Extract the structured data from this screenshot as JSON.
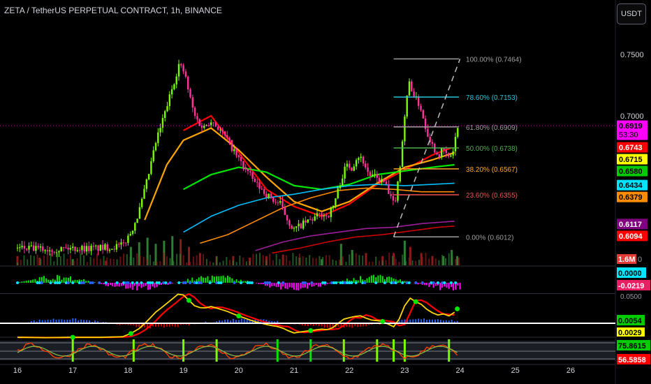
{
  "header": {
    "title": "ZETA / TetherUS PERPETUAL CONTRACT, 1h, BINANCE",
    "currency_button": "USDT"
  },
  "colors": {
    "background": "#000000",
    "candle_up": "#7cfc00",
    "candle_down": "#ff3399",
    "volume_up": "#2e7d32",
    "volume_down": "#8b1a1a"
  },
  "chart_data": {
    "type": "candlestick",
    "symbol": "ZETA / TetherUS PERPETUAL CONTRACT",
    "timeframe": "1h",
    "exchange": "BINANCE",
    "x_ticks": [
      "16",
      "17",
      "18",
      "19",
      "20",
      "21",
      "22",
      "23",
      "24",
      "25",
      "26"
    ],
    "y_ticks": [
      "0.7500",
      "0.7000"
    ],
    "ylim": [
      0.578,
      0.758
    ],
    "path": [
      [
        16.0,
        0.592
      ],
      [
        16.5,
        0.591
      ],
      [
        17.0,
        0.592
      ],
      [
        17.5,
        0.592
      ],
      [
        17.9,
        0.594
      ],
      [
        18.05,
        0.605
      ],
      [
        18.2,
        0.622
      ],
      [
        18.35,
        0.648
      ],
      [
        18.5,
        0.678
      ],
      [
        18.65,
        0.7
      ],
      [
        18.78,
        0.72
      ],
      [
        18.92,
        0.742
      ],
      [
        19.02,
        0.735
      ],
      [
        19.1,
        0.718
      ],
      [
        19.2,
        0.7
      ],
      [
        19.35,
        0.69
      ],
      [
        19.5,
        0.697
      ],
      [
        19.65,
        0.689
      ],
      [
        19.8,
        0.68
      ],
      [
        19.95,
        0.668
      ],
      [
        20.1,
        0.658
      ],
      [
        20.3,
        0.645
      ],
      [
        20.5,
        0.636
      ],
      [
        20.65,
        0.63
      ],
      [
        20.75,
        0.628
      ],
      [
        20.85,
        0.618
      ],
      [
        20.95,
        0.61
      ],
      [
        21.0,
        0.607
      ],
      [
        21.1,
        0.61
      ],
      [
        21.3,
        0.615
      ],
      [
        21.5,
        0.62
      ],
      [
        21.6,
        0.618
      ],
      [
        21.7,
        0.625
      ],
      [
        21.85,
        0.648
      ],
      [
        21.95,
        0.66
      ],
      [
        22.05,
        0.658
      ],
      [
        22.15,
        0.668
      ],
      [
        22.25,
        0.663
      ],
      [
        22.35,
        0.652
      ],
      [
        22.5,
        0.649
      ],
      [
        22.65,
        0.645
      ],
      [
        22.72,
        0.634
      ],
      [
        22.8,
        0.628
      ],
      [
        22.85,
        0.636
      ],
      [
        22.92,
        0.662
      ],
      [
        23.0,
        0.7
      ],
      [
        23.08,
        0.728
      ],
      [
        23.18,
        0.715
      ],
      [
        23.28,
        0.708
      ],
      [
        23.38,
        0.69
      ],
      [
        23.5,
        0.676
      ],
      [
        23.6,
        0.668
      ],
      [
        23.7,
        0.672
      ],
      [
        23.8,
        0.665
      ],
      [
        23.88,
        0.672
      ],
      [
        23.94,
        0.688
      ],
      [
        23.98,
        0.692
      ]
    ],
    "moving_averages": [
      {
        "color": "#ff0000",
        "points": [
          [
            19.0,
            0.688
          ],
          [
            19.5,
            0.7
          ],
          [
            20.0,
            0.67
          ],
          [
            20.5,
            0.64
          ],
          [
            21.0,
            0.626
          ],
          [
            21.5,
            0.618
          ],
          [
            22.0,
            0.628
          ],
          [
            22.5,
            0.644
          ],
          [
            23.0,
            0.656
          ],
          [
            23.5,
            0.668
          ],
          [
            23.85,
            0.674
          ]
        ]
      },
      {
        "color": "#ffa500",
        "points": [
          [
            18.3,
            0.615
          ],
          [
            18.7,
            0.66
          ],
          [
            19.0,
            0.68
          ],
          [
            19.5,
            0.69
          ],
          [
            20.0,
            0.672
          ],
          [
            20.5,
            0.65
          ],
          [
            21.0,
            0.63
          ],
          [
            21.5,
            0.622
          ],
          [
            22.0,
            0.63
          ],
          [
            22.5,
            0.645
          ],
          [
            23.0,
            0.658
          ],
          [
            23.5,
            0.664
          ],
          [
            23.9,
            0.67
          ]
        ]
      },
      {
        "color": "#00e600",
        "points": [
          [
            19.0,
            0.64
          ],
          [
            19.5,
            0.652
          ],
          [
            20.0,
            0.658
          ],
          [
            20.5,
            0.654
          ],
          [
            21.0,
            0.643
          ],
          [
            21.5,
            0.64
          ],
          [
            22.0,
            0.644
          ],
          [
            22.5,
            0.652
          ],
          [
            23.0,
            0.655
          ],
          [
            23.5,
            0.658
          ],
          [
            23.9,
            0.66
          ]
        ]
      },
      {
        "color": "#00bfff",
        "points": [
          [
            19.0,
            0.605
          ],
          [
            19.5,
            0.618
          ],
          [
            20.0,
            0.627
          ],
          [
            20.5,
            0.633
          ],
          [
            21.0,
            0.636
          ],
          [
            21.5,
            0.64
          ],
          [
            22.0,
            0.643
          ],
          [
            22.5,
            0.644
          ],
          [
            23.0,
            0.643
          ],
          [
            23.5,
            0.644
          ],
          [
            23.9,
            0.645
          ]
        ]
      },
      {
        "color": "#ff8c00",
        "points": [
          [
            19.3,
            0.596
          ],
          [
            19.8,
            0.603
          ],
          [
            20.3,
            0.614
          ],
          [
            20.8,
            0.625
          ],
          [
            21.3,
            0.633
          ],
          [
            21.8,
            0.639
          ],
          [
            22.3,
            0.641
          ],
          [
            22.8,
            0.64
          ],
          [
            23.3,
            0.638
          ],
          [
            23.9,
            0.638
          ]
        ]
      },
      {
        "color": "#9b1f9b",
        "points": [
          [
            20.3,
            0.59
          ],
          [
            20.8,
            0.597
          ],
          [
            21.3,
            0.602
          ],
          [
            21.8,
            0.605
          ],
          [
            22.3,
            0.608
          ],
          [
            22.8,
            0.609
          ],
          [
            23.3,
            0.612
          ],
          [
            23.9,
            0.614
          ]
        ]
      },
      {
        "color": "#cc0000",
        "points": [
          [
            20.6,
            0.588
          ],
          [
            21.1,
            0.592
          ],
          [
            21.6,
            0.597
          ],
          [
            22.1,
            0.601
          ],
          [
            22.6,
            0.603
          ],
          [
            23.1,
            0.606
          ],
          [
            23.6,
            0.609
          ],
          [
            23.9,
            0.61
          ]
        ]
      }
    ],
    "fibonacci": {
      "x_start": 22.8,
      "x_end": 23.98,
      "levels": [
        {
          "label": "100.00% (0.7464)",
          "value": 0.7464,
          "color": "#9e9e9e"
        },
        {
          "label": "78.60% (0.7153)",
          "value": 0.7153,
          "color": "#26c6da"
        },
        {
          "label": "61.80% (0.6909)",
          "value": 0.6909,
          "color": "#9e9e9e"
        },
        {
          "label": "50.00% (0.6738)",
          "value": 0.6738,
          "color": "#4caf50"
        },
        {
          "label": "38.20% (0.6567)",
          "value": 0.6567,
          "color": "#ffa726"
        },
        {
          "label": "23.60% (0.6355)",
          "value": 0.6355,
          "color": "#ef5350"
        },
        {
          "label": "0.00% (0.6012)",
          "value": 0.6012,
          "color": "#9e9e9e"
        }
      ],
      "trend_from": [
        22.8,
        0.6012
      ],
      "trend_to": [
        24.0,
        0.7464
      ]
    },
    "current_price_line": 0.6919,
    "price_badges": [
      {
        "value": 0.6919,
        "text": "0.6919",
        "sub": "53:30",
        "color": "#ff00ff",
        "text_color": "#000000"
      },
      {
        "value": 0.6743,
        "text": "0.6743",
        "color": "#ff0000",
        "text_color": "#ffffff"
      },
      {
        "value": 0.6715,
        "text": "0.6715",
        "color": "#ffff00",
        "text_color": "#000000"
      },
      {
        "value": 0.658,
        "text": "0.6580",
        "color": "#00cc00",
        "text_color": "#000000"
      },
      {
        "value": 0.6434,
        "text": "0.6434",
        "color": "#00e5ff",
        "text_color": "#000000"
      },
      {
        "value": 0.6379,
        "text": "0.6379",
        "color": "#ff8c00",
        "text_color": "#000000"
      },
      {
        "value": 0.6117,
        "text": "0.6117",
        "color": "#800080",
        "text_color": "#ffffff"
      },
      {
        "value": 0.6094,
        "text": "0.6094",
        "color": "#ff0000",
        "text_color": "#ffffff"
      }
    ],
    "volume": {
      "badge": "1.6M",
      "edge_label": "0",
      "bars": [
        {
          "x": 16.0,
          "h": 0.3,
          "up": false
        },
        {
          "x": 16.4,
          "h": 0.25,
          "up": false
        },
        {
          "x": 17.0,
          "h": 0.2,
          "up": true
        },
        {
          "x": 17.6,
          "h": 0.15,
          "up": false
        },
        {
          "x": 18.05,
          "h": 0.6,
          "up": true
        },
        {
          "x": 18.2,
          "h": 0.75,
          "up": true
        },
        {
          "x": 18.35,
          "h": 0.9,
          "up": true
        },
        {
          "x": 18.5,
          "h": 0.7,
          "up": true
        },
        {
          "x": 18.65,
          "h": 0.8,
          "up": true
        },
        {
          "x": 18.8,
          "h": 0.95,
          "up": true
        },
        {
          "x": 18.95,
          "h": 0.85,
          "up": false
        },
        {
          "x": 19.1,
          "h": 0.6,
          "up": false
        },
        {
          "x": 19.3,
          "h": 0.4,
          "up": false
        },
        {
          "x": 19.6,
          "h": 0.3,
          "up": false
        },
        {
          "x": 19.9,
          "h": 0.3,
          "up": false
        },
        {
          "x": 20.2,
          "h": 0.25,
          "up": false
        },
        {
          "x": 20.5,
          "h": 0.3,
          "up": false
        },
        {
          "x": 20.8,
          "h": 0.35,
          "up": false
        },
        {
          "x": 21.1,
          "h": 0.25,
          "up": true
        },
        {
          "x": 21.5,
          "h": 0.2,
          "up": true
        },
        {
          "x": 21.85,
          "h": 0.7,
          "up": true
        },
        {
          "x": 22.05,
          "h": 0.5,
          "up": true
        },
        {
          "x": 22.3,
          "h": 0.4,
          "up": false
        },
        {
          "x": 22.6,
          "h": 0.3,
          "up": false
        },
        {
          "x": 22.8,
          "h": 0.4,
          "up": false
        },
        {
          "x": 23.0,
          "h": 0.8,
          "up": true
        },
        {
          "x": 23.1,
          "h": 0.6,
          "up": false
        },
        {
          "x": 23.3,
          "h": 0.4,
          "up": false
        },
        {
          "x": 23.5,
          "h": 0.3,
          "up": false
        },
        {
          "x": 23.7,
          "h": 0.3,
          "up": true
        },
        {
          "x": 23.85,
          "h": 0.5,
          "up": true
        },
        {
          "x": 23.95,
          "h": 0.3,
          "up": true
        }
      ]
    },
    "panels": [
      {
        "name": "momentum-panel",
        "badges": [
          {
            "text": "0.0000",
            "color": "#00e5ff",
            "text_color": "#000000"
          },
          {
            "text": "-0.0219",
            "color": "#e91e63",
            "text_color": "#ffffff"
          }
        ]
      },
      {
        "name": "oscillator-panel",
        "edge_label": "0.0500",
        "badges": [
          {
            "text": "0.0054",
            "color": "#00cc00",
            "text_color": "#000000"
          },
          {
            "text": "0.0029",
            "color": "#ffff00",
            "text_color": "#000000"
          }
        ]
      },
      {
        "name": "rsi-panel",
        "badges": [
          {
            "text": "75.8615",
            "color": "#00cc00",
            "text_color": "#000000"
          },
          {
            "text": "56.5858",
            "color": "#ff0000",
            "text_color": "#ffffff"
          }
        ]
      }
    ]
  }
}
